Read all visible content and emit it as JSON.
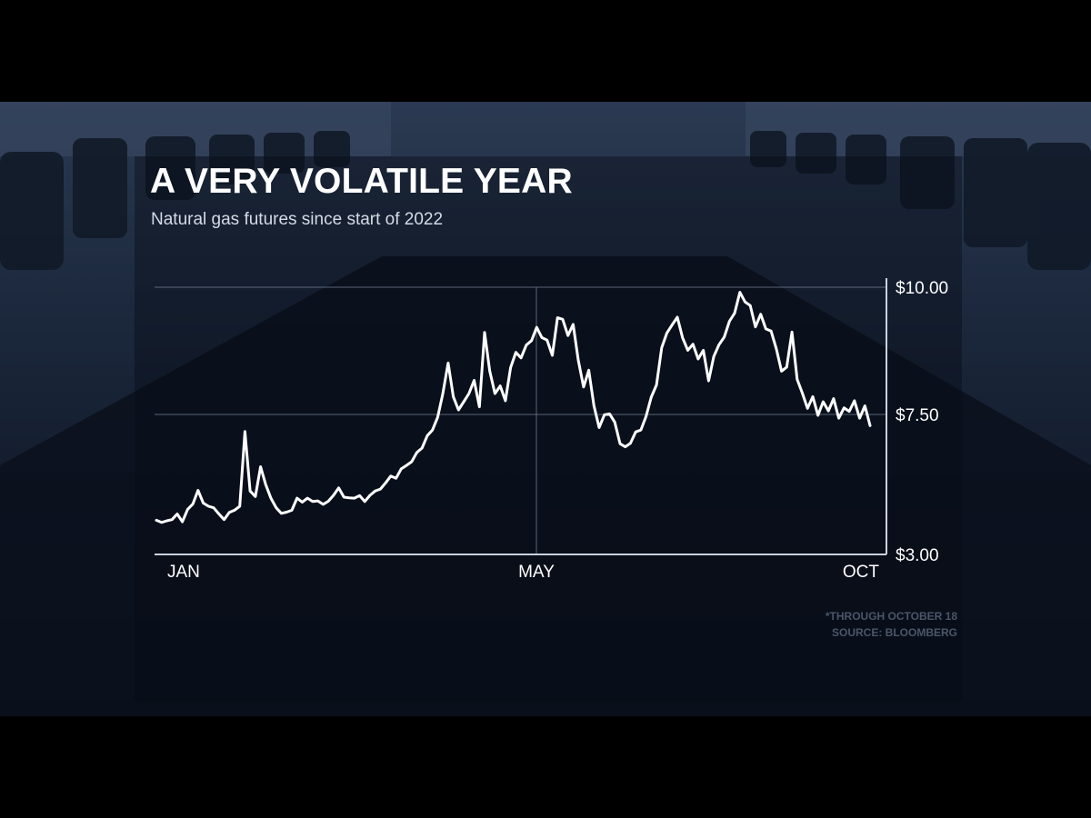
{
  "chart_data": {
    "type": "line",
    "title": "A VERY VOLATILE YEAR",
    "subtitle": "Natural gas futures since start of 2022",
    "xlabel": "",
    "ylabel": "",
    "x_tick_labels": [
      "JAN",
      "MAY",
      "OCT"
    ],
    "y_tick_labels": [
      "$10.00",
      "$7.50",
      "$3.00"
    ],
    "y_tick_values": [
      10.0,
      7.5,
      3.0
    ],
    "legend": "none",
    "grid": true,
    "series": [
      {
        "values": [
          4.1,
          4.03,
          4.08,
          4.12,
          4.3,
          4.05,
          4.45,
          4.62,
          5.06,
          4.65,
          4.55,
          4.5,
          4.3,
          4.12,
          4.35,
          4.42,
          4.55,
          6.95,
          5.04,
          4.86,
          5.82,
          5.24,
          4.8,
          4.5,
          4.32,
          4.36,
          4.42,
          4.81,
          4.68,
          4.81,
          4.7,
          4.72,
          4.61,
          4.71,
          4.9,
          5.14,
          4.84,
          4.82,
          4.81,
          4.89,
          4.7,
          4.9,
          5.04,
          5.1,
          5.3,
          5.52,
          5.45,
          5.75,
          5.86,
          5.98,
          6.28,
          6.42,
          6.82,
          7.0,
          7.41,
          7.91,
          8.51,
          7.85,
          7.59,
          7.75,
          7.91,
          8.17,
          7.65,
          9.11,
          8.35,
          7.91,
          8.06,
          7.77,
          8.42,
          8.72,
          8.61,
          8.86,
          8.95,
          9.21,
          9.01,
          8.96,
          8.66,
          9.4,
          9.37,
          9.05,
          9.27,
          8.56,
          8.04,
          8.37,
          7.67,
          7.08,
          7.49,
          7.51,
          7.25,
          6.56,
          6.46,
          6.57,
          6.94,
          7.0,
          7.44,
          7.84,
          8.08,
          8.81,
          9.1,
          9.26,
          9.41,
          9.01,
          8.76,
          8.88,
          8.59,
          8.76,
          8.16,
          8.64,
          8.87,
          9.02,
          9.33,
          9.49,
          9.9,
          9.71,
          9.64,
          9.22,
          9.47,
          9.18,
          9.14,
          8.79,
          8.35,
          8.43,
          9.12,
          8.19,
          7.92,
          7.62,
          7.85,
          7.47,
          7.75,
          7.57,
          7.81,
          7.38,
          7.63,
          7.56,
          7.77,
          7.38,
          7.67,
          7.14
        ]
      }
    ]
  },
  "footnote": "*THROUGH OCTOBER 18",
  "source": "SOURCE: BLOOMBERG",
  "colors": {
    "line": "#ffffff",
    "gridline": "#6e7b8f",
    "axis": "#c9d2de",
    "text": "#ffffff",
    "subtitle": "#d4dbe6",
    "footnote": "#4a5669"
  }
}
